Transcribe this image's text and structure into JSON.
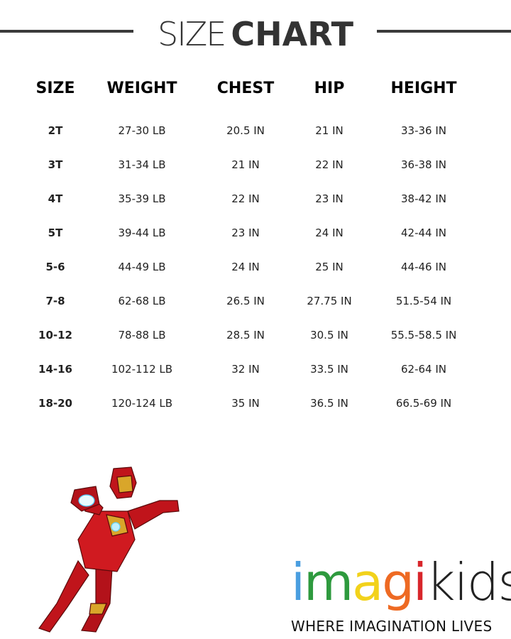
{
  "title": {
    "light": "SIZE",
    "bold": "CHART"
  },
  "columns": [
    "SIZE",
    "WEIGHT",
    "CHEST",
    "HIP",
    "HEIGHT"
  ],
  "rows": [
    [
      "2T",
      "27-30 LB",
      "20.5 IN",
      "21 IN",
      "33-36 IN"
    ],
    [
      "3T",
      "31-34 LB",
      "21 IN",
      "22 IN",
      "36-38 IN"
    ],
    [
      "4T",
      "35-39 LB",
      "22 IN",
      "23 IN",
      "38-42 IN"
    ],
    [
      "5T",
      "39-44 LB",
      "23 IN",
      "24 IN",
      "42-44 IN"
    ],
    [
      "5-6",
      "44-49 LB",
      "24 IN",
      "25 IN",
      "44-46 IN"
    ],
    [
      "7-8",
      "62-68 LB",
      "26.5 IN",
      "27.75 IN",
      "51.5-54 IN"
    ],
    [
      "10-12",
      "78-88 LB",
      "28.5 IN",
      "30.5 IN",
      "55.5-58.5 IN"
    ],
    [
      "14-16",
      "102-112 LB",
      "32 IN",
      "33.5 IN",
      "62-64 IN"
    ],
    [
      "18-20",
      "120-124 LB",
      "35 IN",
      "36.5 IN",
      "66.5-69 IN"
    ]
  ],
  "logo": {
    "letters": [
      {
        "char": "i",
        "color": "#4a9ee0"
      },
      {
        "char": "m",
        "color": "#2e9a3e"
      },
      {
        "char": "a",
        "color": "#f2d21b"
      },
      {
        "char": "g",
        "color": "#ee6a23"
      },
      {
        "char": "i",
        "color": "#d8262b"
      },
      {
        "char": "kids",
        "color": "#222222"
      }
    ],
    "tagline": "WHERE IMAGINATION LIVES"
  },
  "illustration": "iron-man-flying"
}
